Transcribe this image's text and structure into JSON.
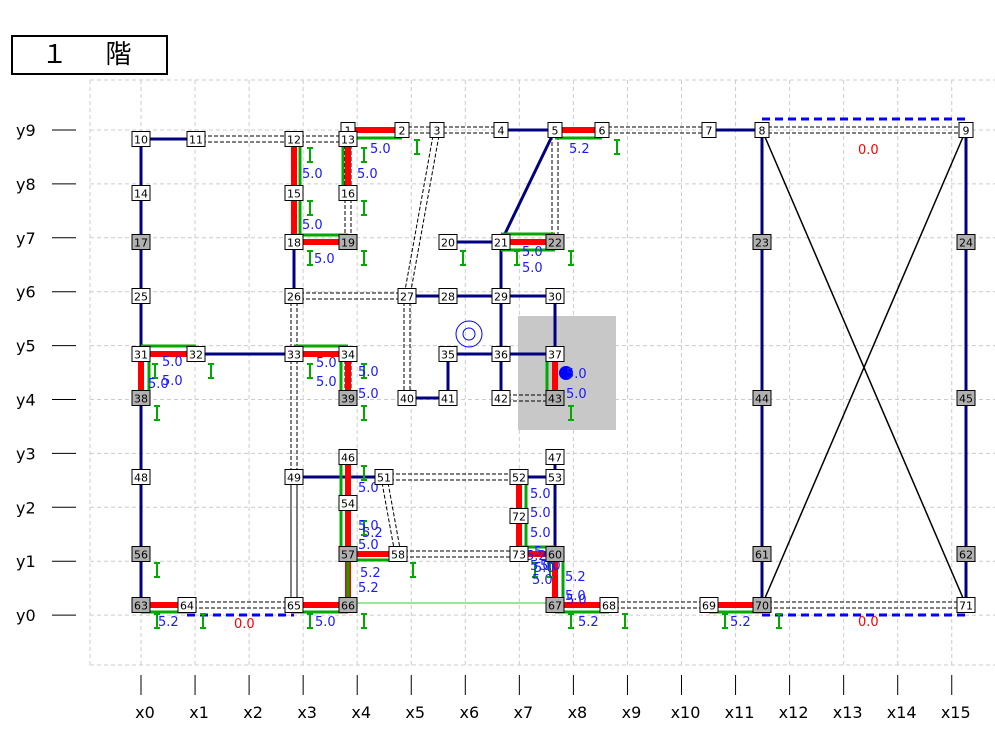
{
  "floor_title": "１　階",
  "axes": {
    "x": [
      "x0",
      "x1",
      "x2",
      "x3",
      "x4",
      "x5",
      "x6",
      "x7",
      "x8",
      "x9",
      "x10",
      "x11",
      "x12",
      "x13",
      "x14",
      "x15"
    ],
    "y": [
      "y9",
      "y8",
      "y7",
      "y6",
      "y5",
      "y4",
      "y3",
      "y2",
      "y1",
      "y0"
    ]
  },
  "colors": {
    "wall": "#000080",
    "brace": "#ff0000",
    "green": "#00aa00",
    "blue_val": "#1a1aff",
    "red_val": "#ff0000",
    "open": "#0000ff",
    "shade": "#c8c8c8"
  },
  "nodes": [
    {
      "id": "1",
      "type": "w"
    },
    {
      "id": "2",
      "type": "w"
    },
    {
      "id": "3",
      "type": "w"
    },
    {
      "id": "4",
      "type": "w"
    },
    {
      "id": "5",
      "type": "w"
    },
    {
      "id": "6",
      "type": "w"
    },
    {
      "id": "7",
      "type": "w"
    },
    {
      "id": "8",
      "type": "w"
    },
    {
      "id": "9",
      "type": "w"
    },
    {
      "id": "10",
      "type": "w"
    },
    {
      "id": "11",
      "type": "w"
    },
    {
      "id": "12",
      "type": "w"
    },
    {
      "id": "13",
      "type": "w"
    },
    {
      "id": "14",
      "type": "w"
    },
    {
      "id": "15",
      "type": "w"
    },
    {
      "id": "16",
      "type": "w"
    },
    {
      "id": "17",
      "type": "g"
    },
    {
      "id": "18",
      "type": "w"
    },
    {
      "id": "19",
      "type": "g"
    },
    {
      "id": "20",
      "type": "w"
    },
    {
      "id": "21",
      "type": "w"
    },
    {
      "id": "22",
      "type": "g"
    },
    {
      "id": "23",
      "type": "g"
    },
    {
      "id": "24",
      "type": "g"
    },
    {
      "id": "25",
      "type": "w"
    },
    {
      "id": "26",
      "type": "w"
    },
    {
      "id": "27",
      "type": "w"
    },
    {
      "id": "28",
      "type": "w"
    },
    {
      "id": "29",
      "type": "w"
    },
    {
      "id": "30",
      "type": "w"
    },
    {
      "id": "31",
      "type": "w"
    },
    {
      "id": "32",
      "type": "w"
    },
    {
      "id": "33",
      "type": "w"
    },
    {
      "id": "34",
      "type": "w"
    },
    {
      "id": "35",
      "type": "w"
    },
    {
      "id": "36",
      "type": "w"
    },
    {
      "id": "37",
      "type": "w"
    },
    {
      "id": "38",
      "type": "g"
    },
    {
      "id": "39",
      "type": "g"
    },
    {
      "id": "40",
      "type": "w"
    },
    {
      "id": "41",
      "type": "w"
    },
    {
      "id": "42",
      "type": "w"
    },
    {
      "id": "43",
      "type": "g"
    },
    {
      "id": "44",
      "type": "g"
    },
    {
      "id": "45",
      "type": "g"
    },
    {
      "id": "46",
      "type": "w"
    },
    {
      "id": "47",
      "type": "w"
    },
    {
      "id": "48",
      "type": "w"
    },
    {
      "id": "49",
      "type": "w"
    },
    {
      "id": "51",
      "type": "w"
    },
    {
      "id": "52",
      "type": "w"
    },
    {
      "id": "53",
      "type": "w"
    },
    {
      "id": "54",
      "type": "w"
    },
    {
      "id": "56",
      "type": "g"
    },
    {
      "id": "57",
      "type": "g"
    },
    {
      "id": "58",
      "type": "w"
    },
    {
      "id": "60",
      "type": "g"
    },
    {
      "id": "61",
      "type": "g"
    },
    {
      "id": "62",
      "type": "g"
    },
    {
      "id": "63",
      "type": "g"
    },
    {
      "id": "64",
      "type": "w"
    },
    {
      "id": "65",
      "type": "w"
    },
    {
      "id": "66",
      "type": "g"
    },
    {
      "id": "67",
      "type": "g"
    },
    {
      "id": "68",
      "type": "w"
    },
    {
      "id": "69",
      "type": "w"
    },
    {
      "id": "70",
      "type": "g"
    },
    {
      "id": "71",
      "type": "w"
    },
    {
      "id": "72",
      "type": "w"
    },
    {
      "id": "73",
      "type": "w"
    }
  ],
  "values": {
    "blue": [
      "5.0",
      "5.2",
      "5.0",
      "5.0",
      "5.0",
      "5.0",
      "5.0",
      "5.0",
      "5.0",
      "5.0",
      "5.0",
      "5.0",
      "5.0",
      "5.0",
      "5.0",
      "5.0",
      "5.0",
      "5.0",
      "5.0",
      "5.0",
      "5.0",
      "5.0",
      "5.0",
      "5.2",
      "5.2",
      "5.2",
      "5.0",
      "5.2",
      "5.0",
      "5.0",
      "5.2",
      "5.2",
      "5.2",
      "5.2",
      "5.2",
      "5.0",
      "5.0",
      "5.0",
      "5.0"
    ],
    "red": [
      "0.0",
      "0.0",
      "0.0"
    ]
  }
}
